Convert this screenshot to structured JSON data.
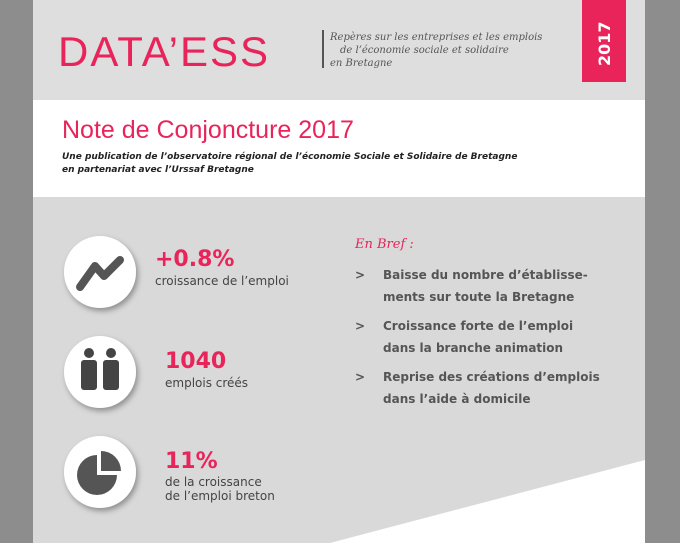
{
  "header": {
    "logo": "DATA’ESS",
    "tagline": [
      "Repères sur les entreprises et les emplois",
      "de l’économie sociale et solidaire",
      "en Bretagne"
    ],
    "year": "2017"
  },
  "title": {
    "heading": "Note de Conjoncture 2017",
    "subtitle": [
      "Une publication de l’observatoire régional de l’économie Sociale et Solidaire de Bretagne",
      "en partenariat avec l’Urssaf Bretagne"
    ]
  },
  "stats": [
    {
      "value": "+0.8%",
      "label": [
        "croissance de l’emploi"
      ]
    },
    {
      "value": "1040",
      "label": [
        "emplois créés"
      ]
    },
    {
      "value": "11%",
      "label": [
        "de la croissance",
        "de l’emploi breton"
      ]
    }
  ],
  "brief": {
    "heading": "En Bref :",
    "marker": ">",
    "items": [
      [
        "Baisse du nombre d’établisse-",
        "ments sur toute la Bretagne"
      ],
      [
        "Croissance forte de l’emploi",
        "dans la branche animation"
      ],
      [
        "Reprise des créations d’emplois",
        "dans l’aide à domicile"
      ]
    ]
  }
}
